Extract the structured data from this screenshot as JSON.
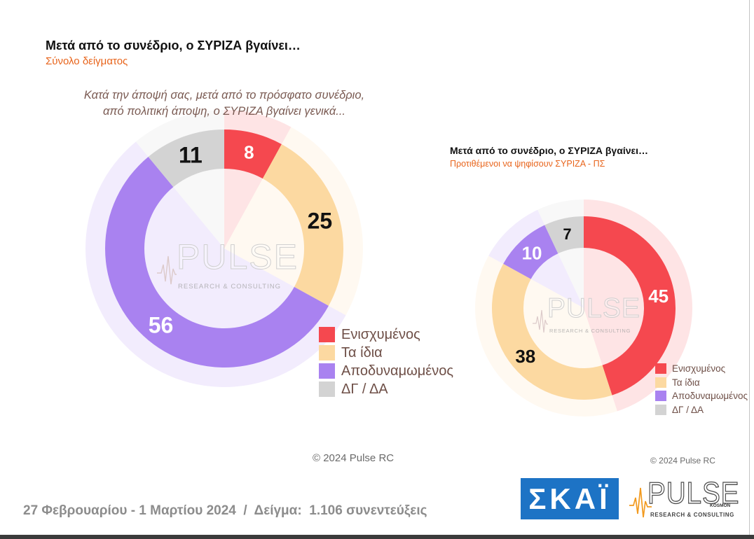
{
  "chart_data": [
    {
      "type": "pie",
      "donut": true,
      "title": "Μετά από το συνέδριο, ο ΣΥΡΙΖΑ βγαίνει…",
      "subtitle": "Σύνολο δείγματος",
      "question": [
        "Κατά την άποψή σας, μετά από το πρόσφατο συνέδριο,",
        "από πολιτική άποψη, ο ΣΥΡΙΖΑ βγαίνει γενικά..."
      ],
      "categories": [
        "Ενισχυμένος",
        "Τα ίδια",
        "Αποδυναμωμένος",
        "ΔΓ / ΔΑ"
      ],
      "values": [
        8,
        25,
        56,
        11
      ],
      "colors": [
        "#f5484f",
        "#fcd9a1",
        "#a982f0",
        "#d3d3d3"
      ],
      "label_colors": [
        "#ffffff",
        "#111111",
        "#ffffff",
        "#111111"
      ],
      "legend": "bottom-right",
      "copyright": "© 2024 Pulse RC"
    },
    {
      "type": "pie",
      "donut": true,
      "title": "Μετά από το συνέδριο, ο ΣΥΡΙΖΑ βγαίνει…",
      "subtitle": "Προτιθέμενοι να ψηφίσουν ΣΥΡΙΖΑ - ΠΣ",
      "categories": [
        "Ενισχυμένος",
        "Τα ίδια",
        "Αποδυναμωμένος",
        "ΔΓ / ΔΑ"
      ],
      "values": [
        45,
        38,
        10,
        7
      ],
      "colors": [
        "#f5484f",
        "#fcd9a1",
        "#a982f0",
        "#d3d3d3"
      ],
      "label_colors": [
        "#ffffff",
        "#111111",
        "#ffffff",
        "#111111"
      ],
      "legend": "bottom-right",
      "copyright": "© 2024 Pulse RC"
    }
  ],
  "footer": {
    "fieldwork": "27 Φεβρουαρίου - 1 Μαρτίου 2024  /  Δείγμα:  1.106 συνεντεύξεις"
  },
  "logos": {
    "skai": "ΣΚΑΪ",
    "pulse": "PULSE",
    "pulse_sub": "KOSMON",
    "pulse_tagline": "RESEARCH & CONSULTING",
    "pulse_accent": "#f29a1f",
    "skai_color": "#1d73c5"
  },
  "theme": {
    "title_color": "#111111",
    "subtitle_color": "#e8641b",
    "question_color": "#7a5a52",
    "legend_text_color": "#6e4f47",
    "footer_color": "#8c8c8c"
  }
}
